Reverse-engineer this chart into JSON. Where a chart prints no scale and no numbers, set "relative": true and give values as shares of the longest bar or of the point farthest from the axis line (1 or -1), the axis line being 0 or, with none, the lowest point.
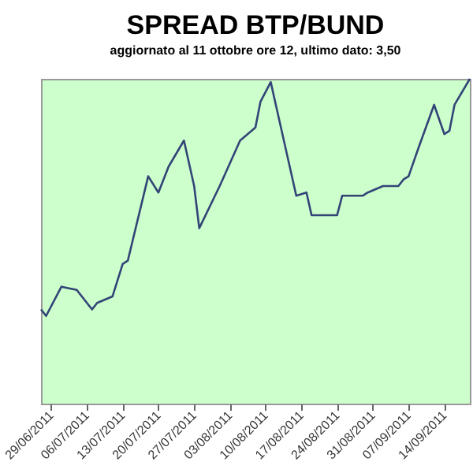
{
  "chart_data": {
    "type": "line",
    "title": "SPREAD BTP/BUND",
    "subtitle": "aggiornato al 11 ottobre ore 12, ultimo dato: 3,50",
    "relative": true,
    "x": [
      "2011-06-27",
      "2011-06-28",
      "2011-07-01",
      "2011-07-04",
      "2011-07-07",
      "2011-07-08",
      "2011-07-11",
      "2011-07-13",
      "2011-07-14",
      "2011-07-18",
      "2011-07-20",
      "2011-07-22",
      "2011-07-25",
      "2011-07-27",
      "2011-07-28",
      "2011-08-01",
      "2011-08-05",
      "2011-08-08",
      "2011-08-09",
      "2011-08-11",
      "2011-08-12",
      "2011-08-16",
      "2011-08-18",
      "2011-08-19",
      "2011-08-22",
      "2011-08-24",
      "2011-08-25",
      "2011-08-29",
      "2011-08-30",
      "2011-09-02",
      "2011-09-05",
      "2011-09-06",
      "2011-09-07",
      "2011-09-09",
      "2011-09-12",
      "2011-09-14",
      "2011-09-15",
      "2011-09-16",
      "2011-09-19"
    ],
    "series": [
      {
        "color": "#334477",
        "values": [
          0.29,
          0.27,
          0.36,
          0.35,
          0.29,
          0.31,
          0.33,
          0.43,
          0.44,
          0.7,
          0.65,
          0.73,
          0.81,
          0.67,
          0.54,
          0.67,
          0.81,
          0.85,
          0.93,
          0.99,
          0.92,
          0.64,
          0.65,
          0.58,
          0.58,
          0.58,
          0.64,
          0.64,
          0.65,
          0.67,
          0.67,
          0.69,
          0.7,
          0.79,
          0.92,
          0.83,
          0.84,
          0.92,
          1.0
        ]
      }
    ],
    "xlim": [
      "2011-06-27",
      "2011-09-19"
    ],
    "xticks": [
      {
        "value": "2011-06-29",
        "label": "29/06/2011"
      },
      {
        "value": "2011-07-06",
        "label": "06/07/2011"
      },
      {
        "value": "2011-07-13",
        "label": "13/07/2011"
      },
      {
        "value": "2011-07-20",
        "label": "20/07/2011"
      },
      {
        "value": "2011-07-27",
        "label": "27/07/2011"
      },
      {
        "value": "2011-08-03",
        "label": "03/08/2011"
      },
      {
        "value": "2011-08-10",
        "label": "10/08/2011"
      },
      {
        "value": "2011-08-17",
        "label": "17/08/2011"
      },
      {
        "value": "2011-08-24",
        "label": "24/08/2011"
      },
      {
        "value": "2011-08-31",
        "label": "31/08/2011"
      },
      {
        "value": "2011-09-07",
        "label": "07/09/2011"
      },
      {
        "value": "2011-09-14",
        "label": "14/09/2011"
      }
    ],
    "tick_labels": "x"
  }
}
